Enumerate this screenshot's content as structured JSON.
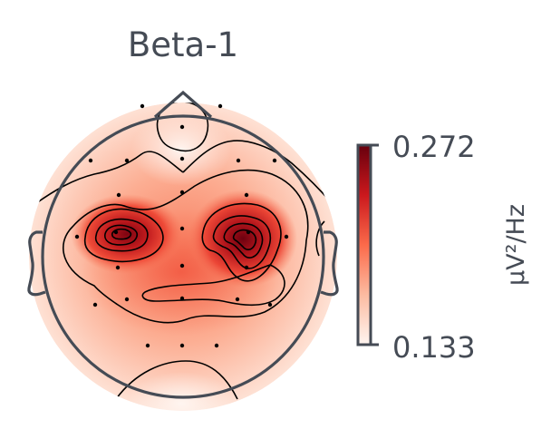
{
  "chart_data": {
    "type": "heatmap",
    "title": "Beta-1",
    "colorbar": {
      "label": "µV²/Hz",
      "min": 0.133,
      "max": 0.272,
      "min_label": "0.133",
      "max_label": "0.272",
      "colormap": "Reds"
    },
    "colors": {
      "text": "#454b55",
      "head_outline": "#454b55",
      "contour": "#000000",
      "colormap_low": "#fff5f0",
      "colormap_mid": "#fb6a4a",
      "colormap_high": "#67000d"
    },
    "peaks": [
      {
        "name": "left-central",
        "level": 0.272
      },
      {
        "name": "right-central",
        "level": 0.272
      }
    ]
  }
}
